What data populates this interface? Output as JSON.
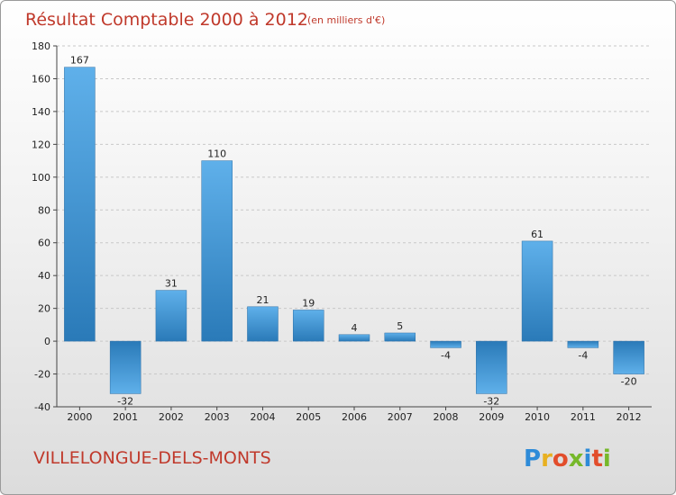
{
  "chart_data": {
    "type": "bar",
    "title": "Résultat Comptable 2000 à 2012",
    "subtitle": "(en milliers d'€)",
    "categories": [
      "2000",
      "2001",
      "2002",
      "2003",
      "2004",
      "2005",
      "2006",
      "2007",
      "2008",
      "2009",
      "2010",
      "2011",
      "2012"
    ],
    "values": [
      167,
      -32,
      31,
      110,
      21,
      19,
      4,
      5,
      -4,
      -32,
      61,
      -4,
      -20
    ],
    "ylim": [
      -40,
      180
    ],
    "yticks": [
      -40,
      -20,
      0,
      20,
      40,
      60,
      80,
      100,
      120,
      140,
      160,
      180
    ],
    "xlabel": "",
    "ylabel": "",
    "bar_color": "#3d8fd1"
  },
  "footer": {
    "commune": "VILLELONGUE-DELS-MONTS",
    "logo_letters": [
      "P",
      "r",
      "o",
      "x",
      "i",
      "t",
      "i"
    ],
    "logo_colors": [
      "#2e8bd8",
      "#e8b020",
      "#e24d2b",
      "#76b82a",
      "#2e8bd8",
      "#e24d2b",
      "#76b82a"
    ]
  }
}
